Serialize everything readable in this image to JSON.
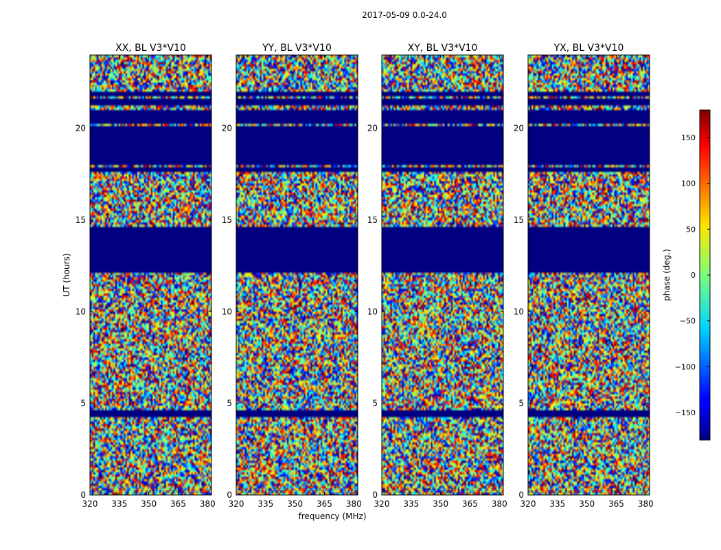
{
  "chart_data": {
    "type": "heatmap",
    "title": "2017-05-09 0.0-24.0",
    "xlabel": "frequency (MHz)",
    "ylabel": "UT (hours)",
    "xlim": [
      320,
      382
    ],
    "ylim": [
      0,
      24
    ],
    "xticks": [
      320,
      335,
      350,
      365,
      380
    ],
    "yticks": [
      0,
      5,
      10,
      15,
      20
    ],
    "panels": [
      {
        "name": "XX, BL V3*V10",
        "pol": "XX"
      },
      {
        "name": "YY, BL V3*V10",
        "pol": "YY"
      },
      {
        "name": "XY, BL V3*V10",
        "pol": "XY"
      },
      {
        "name": "YX, BL V3*V10",
        "pol": "YX"
      }
    ],
    "flagged_ut_ranges": [
      [
        4.2,
        4.6
      ],
      [
        12.1,
        14.6
      ],
      [
        17.6,
        17.9
      ],
      [
        18.0,
        20.1
      ],
      [
        20.3,
        21.0
      ],
      [
        21.2,
        21.6
      ],
      [
        21.8,
        22.0
      ]
    ],
    "colorbar": {
      "label": "phase (deg.)",
      "range": [
        -180,
        180
      ],
      "ticks": [
        -150,
        -100,
        -50,
        0,
        50,
        100,
        150
      ],
      "tick_labels": [
        "−150",
        "−100",
        "−50",
        "0",
        "50",
        "100",
        "150"
      ],
      "colormap": "jet"
    }
  }
}
